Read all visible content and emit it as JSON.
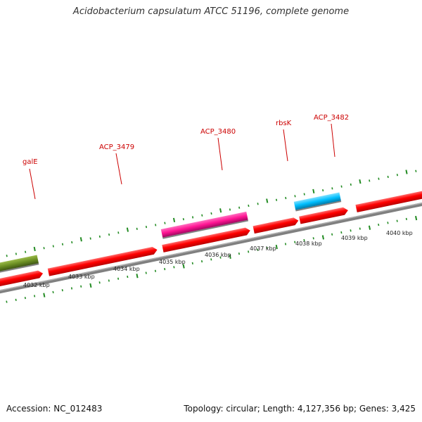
{
  "title": "Acidobacterium capsulatum ATCC 51196, complete genome",
  "accession": "Accession: NC_012483",
  "topology": "Topology: circular; Length: 4,127,356 bp; Genes: 3,425",
  "genes": [
    {
      "label": "galE",
      "color": "#6b8e23",
      "strand": "minus"
    },
    {
      "label": "ACP_3479",
      "color": "#ff0000",
      "strand": "plus"
    },
    {
      "label": "ACP_3480",
      "color": "#ff1493",
      "strand": "minus"
    },
    {
      "label": "rbsK",
      "color": "#ff0000",
      "strand": "plus"
    },
    {
      "label": "ACP_3482",
      "color": "#00bfff",
      "strand": "minus"
    }
  ],
  "scale_labels": [
    "4032 kbp",
    "4033 kbp",
    "4034 kbp",
    "4035 kbp",
    "4036 kbp",
    "4037 kbp",
    "4038 kbp",
    "4039 kbp",
    "4040 kbp"
  ],
  "colors": {
    "forward_gene": "#ff0000",
    "backbone": "#808080",
    "tick": "#228b22",
    "label": "#cc0000"
  }
}
